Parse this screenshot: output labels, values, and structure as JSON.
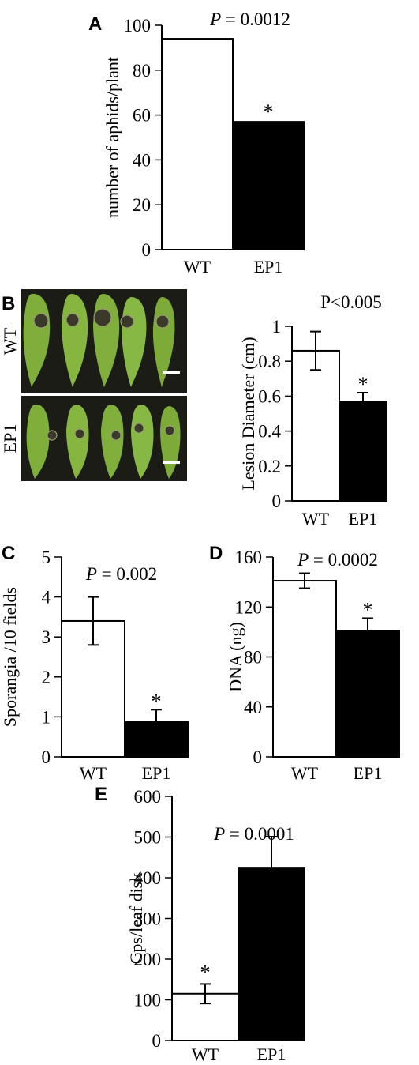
{
  "figure": {
    "panels": [
      {
        "letter": "A"
      },
      {
        "letter": "B",
        "photo_rows": [
          "WT",
          "EP1"
        ]
      },
      {
        "letter": "C"
      },
      {
        "letter": "D"
      },
      {
        "letter": "E"
      }
    ]
  },
  "chart_data": [
    {
      "panel": "A",
      "type": "bar",
      "categories": [
        "WT",
        "EP1"
      ],
      "values": [
        94,
        57
      ],
      "errors": [
        null,
        null
      ],
      "significance": [
        "",
        "*"
      ],
      "ylabel": "number of aphids/plant",
      "ylim": [
        0,
        100
      ],
      "yticks": [
        0,
        20,
        40,
        60,
        80,
        100
      ],
      "annotation": {
        "italic": "P",
        "rest": " = 0.0012"
      },
      "colors": [
        "#ffffff",
        "#000000"
      ]
    },
    {
      "panel": "B",
      "type": "bar",
      "categories": [
        "WT",
        "EP1"
      ],
      "values": [
        0.86,
        0.57
      ],
      "errors": [
        0.11,
        0.05
      ],
      "significance": [
        "",
        "*"
      ],
      "ylabel": "Lesion Diameter (cm)",
      "ylim": [
        0,
        1
      ],
      "yticks": [
        "0",
        "0.2",
        "0.4",
        "0.6",
        "0.8",
        "1"
      ],
      "annotation": {
        "italic": "",
        "rest": "P<0.005"
      },
      "colors": [
        "#ffffff",
        "#000000"
      ]
    },
    {
      "panel": "C",
      "type": "bar",
      "categories": [
        "WT",
        "EP1"
      ],
      "values": [
        3.4,
        0.88
      ],
      "errors": [
        0.6,
        0.3
      ],
      "significance": [
        "",
        "*"
      ],
      "ylabel": "Sporangia /10 fields",
      "ylim": [
        0,
        5
      ],
      "yticks": [
        0,
        1,
        2,
        3,
        4,
        5
      ],
      "annotation": {
        "italic": "P",
        "rest": " = 0.002"
      },
      "colors": [
        "#ffffff",
        "#000000"
      ]
    },
    {
      "panel": "D",
      "type": "bar",
      "categories": [
        "WT",
        "EP1"
      ],
      "values": [
        141,
        101
      ],
      "errors": [
        6,
        10
      ],
      "significance": [
        "",
        "*"
      ],
      "ylabel": "DNA (ng)",
      "ylim": [
        0,
        160
      ],
      "yticks": [
        0,
        40,
        80,
        120,
        160
      ],
      "annotation": {
        "italic": "P",
        "rest": " = 0.0002"
      },
      "colors": [
        "#ffffff",
        "#000000"
      ]
    },
    {
      "panel": "E",
      "type": "bar",
      "categories": [
        "WT",
        "EP1"
      ],
      "values": [
        115,
        423
      ],
      "errors": [
        24,
        78
      ],
      "significance": [
        "*",
        ""
      ],
      "ylabel": "Cps/leaf disk",
      "ylim": [
        0,
        600
      ],
      "yticks": [
        0,
        100,
        200,
        300,
        400,
        500,
        600
      ],
      "annotation": {
        "italic": "P",
        "rest": " = 0.0001"
      },
      "colors": [
        "#ffffff",
        "#000000"
      ]
    }
  ]
}
